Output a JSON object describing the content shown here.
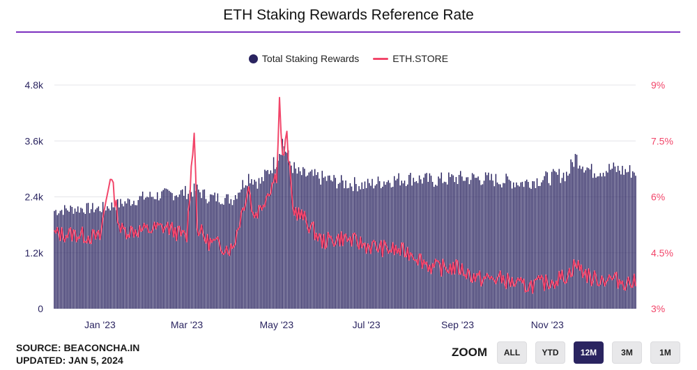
{
  "title": "ETH Staking Rewards Reference Rate",
  "legend": {
    "items": [
      {
        "label": "Total Staking Rewards",
        "color": "#2a2460",
        "marker": "dot"
      },
      {
        "label": "ETH.STORE",
        "color": "#f2466a",
        "marker": "line"
      }
    ]
  },
  "source": {
    "line1": "SOURCE: BEACONCHA.IN",
    "line2": "UPDATED: JAN 5, 2024"
  },
  "zoom": {
    "label": "ZOOM",
    "buttons": [
      "ALL",
      "YTD",
      "12M",
      "3M",
      "1M"
    ],
    "active": "12M"
  },
  "chart_data": {
    "type": "bar",
    "x_range": [
      "2022-12-01",
      "2023-12-31"
    ],
    "x_ticks": [
      "Jan '23",
      "Mar '23",
      "May '23",
      "Jul '23",
      "Sep '23",
      "Nov '23"
    ],
    "y_left": {
      "ticks": [
        "0",
        "1.2k",
        "2.4k",
        "3.6k",
        "4.8k"
      ],
      "ylim": [
        0,
        4800
      ]
    },
    "y_right": {
      "ticks": [
        "3%",
        "4.5%",
        "6%",
        "7.5%",
        "9%"
      ],
      "ylim": [
        3,
        9
      ]
    },
    "colors": {
      "bars": "#2a2460",
      "line": "#f2466a"
    },
    "grid": true,
    "legend_position": "top-center",
    "series": [
      {
        "name": "Total Staking Rewards",
        "kind": "bar",
        "axis": "left",
        "x": [
          "Dec 1",
          "Dec 15",
          "Jan 1",
          "Jan 15",
          "Feb 1",
          "Feb 15",
          "Mar 1",
          "Mar 8",
          "Mar 15",
          "Apr 1",
          "Apr 12",
          "Apr 20",
          "May 1",
          "May 5",
          "May 10",
          "May 15",
          "Jun 1",
          "Jun 15",
          "Jul 1",
          "Jul 15",
          "Aug 1",
          "Aug 15",
          "Sep 1",
          "Sep 15",
          "Oct 1",
          "Oct 15",
          "Nov 1",
          "Nov 15",
          "Nov 20",
          "Dec 1",
          "Dec 15",
          "Dec 25"
        ],
        "values": [
          2100,
          2150,
          2150,
          2250,
          2400,
          2450,
          2500,
          2550,
          2400,
          2350,
          2850,
          2700,
          3200,
          3600,
          3150,
          2900,
          2800,
          2700,
          2650,
          2750,
          2800,
          2750,
          2800,
          2800,
          2750,
          2700,
          2800,
          2900,
          3250,
          2950,
          3000,
          2950
        ]
      },
      {
        "name": "ETH.STORE",
        "kind": "line",
        "axis": "right",
        "x": [
          "Dec 1",
          "Dec 15",
          "Jan 1",
          "Jan 8",
          "Jan 15",
          "Feb 1",
          "Feb 15",
          "Mar 1",
          "Mar 6",
          "Mar 8",
          "Mar 15",
          "Apr 1",
          "Apr 12",
          "Apr 15",
          "Apr 20",
          "May 1",
          "May 3",
          "May 5",
          "May 8",
          "May 12",
          "May 20",
          "Jun 1",
          "Jun 15",
          "Jul 1",
          "Jul 15",
          "Aug 1",
          "Aug 15",
          "Sep 1",
          "Sep 15",
          "Oct 1",
          "Oct 15",
          "Nov 1",
          "Nov 15",
          "Nov 20",
          "Dec 1",
          "Dec 15",
          "Dec 25"
        ],
        "values": [
          5.0,
          5.0,
          4.9,
          6.6,
          5.1,
          5.1,
          5.2,
          4.9,
          7.9,
          5.2,
          4.8,
          4.6,
          6.3,
          5.5,
          5.7,
          6.6,
          8.6,
          7.0,
          7.6,
          5.7,
          5.4,
          4.8,
          4.9,
          4.7,
          4.6,
          4.5,
          4.1,
          4.1,
          3.8,
          3.8,
          3.6,
          3.7,
          3.9,
          4.2,
          3.8,
          3.8,
          3.7
        ]
      }
    ]
  }
}
